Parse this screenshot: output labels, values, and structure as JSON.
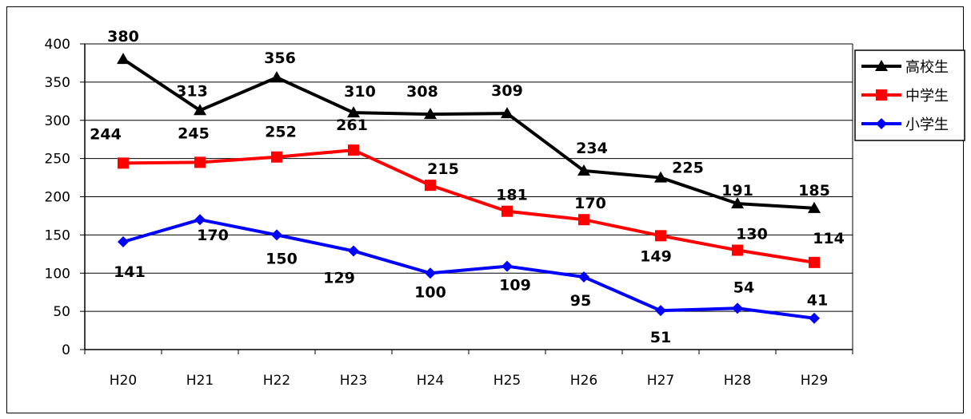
{
  "chart_data": {
    "type": "line",
    "categories": [
      "H20",
      "H21",
      "H22",
      "H23",
      "H24",
      "H25",
      "H26",
      "H27",
      "H28",
      "H29"
    ],
    "series": [
      {
        "name": "高校生",
        "values": [
          380,
          313,
          356,
          310,
          308,
          309,
          234,
          225,
          191,
          185
        ],
        "color": "#000000",
        "marker": "triangle"
      },
      {
        "name": "中学生",
        "values": [
          244,
          245,
          252,
          261,
          215,
          181,
          170,
          149,
          130,
          114
        ],
        "color": "#ff0000",
        "marker": "square"
      },
      {
        "name": "小学生",
        "values": [
          141,
          170,
          150,
          129,
          100,
          109,
          95,
          51,
          54,
          41
        ],
        "color": "#0000ff",
        "marker": "diamond"
      }
    ],
    "ylim": [
      0,
      400
    ],
    "yticks": [
      0,
      50,
      100,
      150,
      200,
      250,
      300,
      350,
      400
    ],
    "grid": true,
    "legend": "right-top",
    "title": "",
    "xlabel": "",
    "ylabel": ""
  }
}
